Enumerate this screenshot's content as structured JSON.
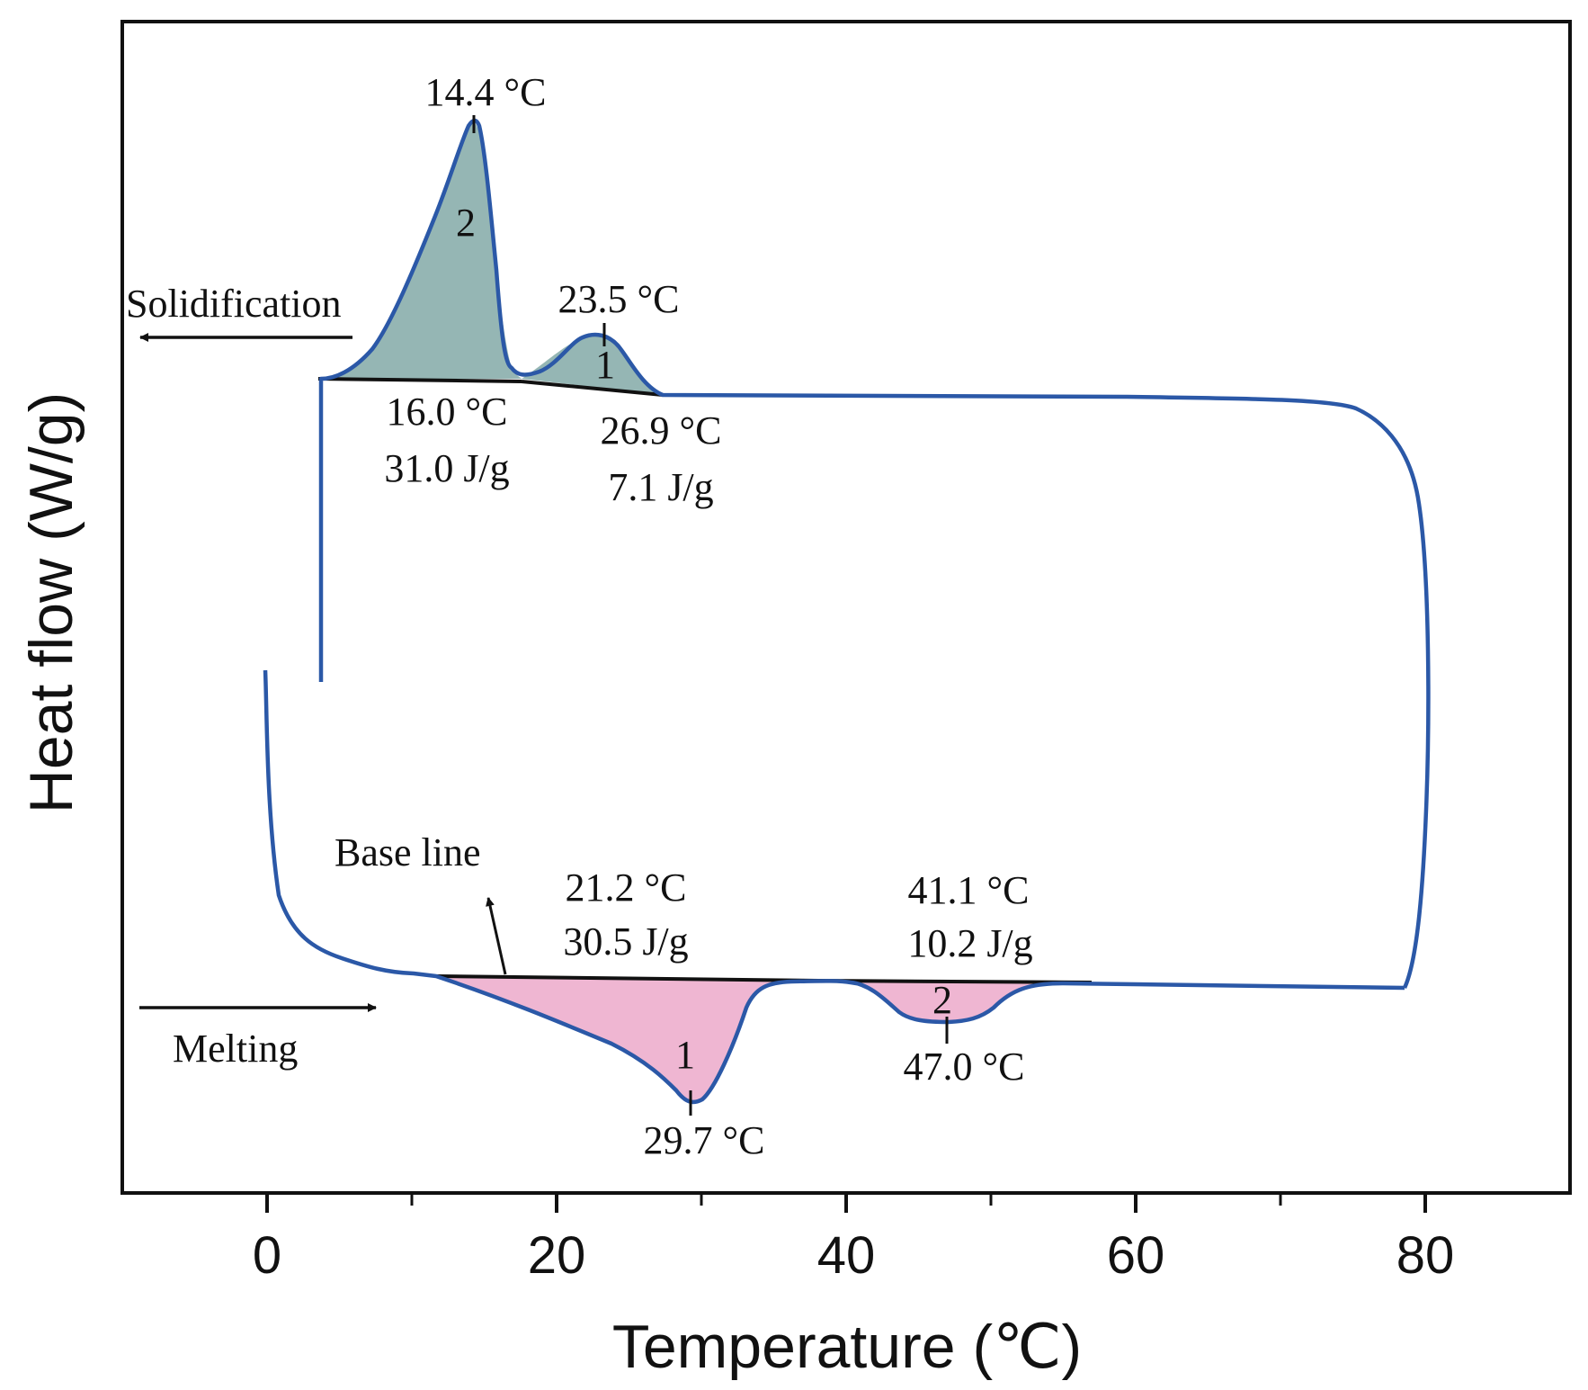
{
  "chart_data": {
    "type": "line",
    "title": "",
    "xlabel": "Temperature (℃)",
    "ylabel": "Heat flow (W/g)",
    "xlim": [
      -10,
      90
    ],
    "xticks": [
      0,
      20,
      40,
      60,
      80
    ],
    "y_scale": "arbitrary (no numeric y ticks)",
    "colors": {
      "curve": "#2b58a7",
      "solidification_fill": "#95b6b4",
      "melting_fill": "#efb6d2",
      "baseline": "#111111"
    },
    "series": [
      {
        "name": "Solidification (cooling)",
        "x": [
          3.7,
          3.7,
          5,
          7,
          9,
          10.5,
          12,
          13,
          14.4,
          15.2,
          16,
          17,
          18,
          20,
          22,
          23.5,
          25,
          26.9,
          30,
          40,
          50,
          60,
          70,
          74,
          76.5,
          78,
          78.8,
          79.4,
          79.4,
          78.9,
          78.3
        ],
        "y": [
          -0.2,
          0.0,
          0.01,
          0.06,
          0.17,
          0.34,
          0.58,
          0.79,
          1.0,
          0.92,
          0.5,
          0.05,
          -0.01,
          0.05,
          0.13,
          0.16,
          0.11,
          -0.06,
          -0.07,
          -0.07,
          -0.075,
          -0.08,
          -0.08,
          -0.09,
          -0.15,
          -0.25,
          -0.45,
          -0.8,
          -2.2,
          -2.5,
          -2.53
        ]
      },
      {
        "name": "Melting (heating)",
        "x": [
          0,
          0.3,
          1,
          2.5,
          5,
          8,
          10,
          15,
          20,
          24,
          27,
          29.7,
          31,
          33,
          35,
          37,
          40,
          42,
          44,
          46,
          47,
          50,
          53,
          55,
          57,
          60,
          70,
          78.3
        ],
        "y": [
          -1.1,
          -1.6,
          -1.9,
          -2.05,
          -2.13,
          -2.16,
          -2.16,
          -2.2,
          -2.28,
          -2.35,
          -2.45,
          -2.56,
          -2.48,
          -2.26,
          -2.19,
          -2.175,
          -2.175,
          -2.2,
          -2.24,
          -2.245,
          -2.245,
          -2.24,
          -2.2,
          -2.18,
          -2.18,
          -2.185,
          -2.19,
          -2.2
        ]
      }
    ],
    "peaks": [
      {
        "process": "Solidification",
        "peak_no": "2",
        "peak_temp": "14.4 °C",
        "onset": "16.0 °C",
        "enthalpy": "31.0 J/g"
      },
      {
        "process": "Solidification",
        "peak_no": "1",
        "peak_temp": "23.5 °C",
        "onset": "26.9 °C",
        "enthalpy": "7.1 J/g"
      },
      {
        "process": "Melting",
        "peak_no": "1",
        "peak_temp": "29.7 °C",
        "onset": "21.2 °C",
        "enthalpy": "30.5 J/g"
      },
      {
        "process": "Melting",
        "peak_no": "2",
        "peak_temp": "47.0 °C",
        "onset": "41.1 °C",
        "enthalpy": "10.2 J/g"
      }
    ],
    "annotations": {
      "solid_peak2_temp": "14.4 °C",
      "solid_peak2_label": "2",
      "solid_peak2_onset": "16.0 °C",
      "solid_peak2_enthalpy": "31.0 J/g",
      "solid_peak1_temp": "23.5 °C",
      "solid_peak1_label": "1",
      "solid_peak1_onset": "26.9 °C",
      "solid_peak1_enthalpy": "7.1 J/g",
      "solidification_arrow": "Solidification",
      "baseline_label": "Base line",
      "melt_peak1_onset": "21.2 °C",
      "melt_peak1_enthalpy": "30.5 J/g",
      "melt_peak1_label": "1",
      "melt_peak1_temp": "29.7 °C",
      "melt_peak2_onset": "41.1 °C",
      "melt_peak2_enthalpy": "10.2 J/g",
      "melt_peak2_label": "2",
      "melt_peak2_temp": "47.0 °C",
      "melting_arrow": "Melting"
    }
  }
}
